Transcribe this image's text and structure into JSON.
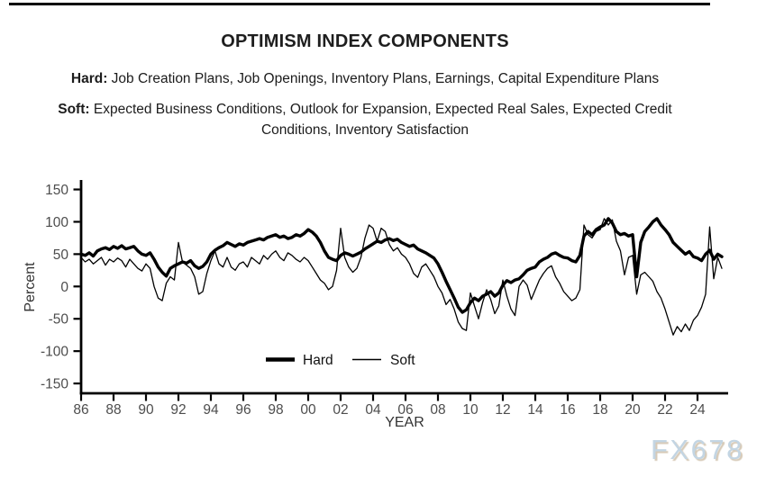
{
  "header": {
    "title": "OPTIMISM INDEX COMPONENTS",
    "hard_label": "Hard:",
    "hard_text": "Job Creation Plans, Job Openings, Inventory Plans, Earnings, Capital Expenditure Plans",
    "soft_label": "Soft:",
    "soft_text": "Expected Business Conditions, Outlook for Expansion, Expected Real Sales, Expected Credit Conditions, Inventory Satisfaction"
  },
  "watermark": "FX678",
  "chart_data": {
    "type": "line",
    "title": "OPTIMISM INDEX COMPONENTS",
    "xlabel": "YEAR",
    "ylabel": "Percent",
    "ylim": [
      -150,
      150
    ],
    "yticks": [
      150,
      100,
      50,
      0,
      -50,
      -100,
      -150
    ],
    "xticks": [
      {
        "label": "86",
        "year": 1986
      },
      {
        "label": "88",
        "year": 1988
      },
      {
        "label": "90",
        "year": 1990
      },
      {
        "label": "92",
        "year": 1992
      },
      {
        "label": "94",
        "year": 1994
      },
      {
        "label": "96",
        "year": 1996
      },
      {
        "label": "98",
        "year": 1998
      },
      {
        "label": "00",
        "year": 2000
      },
      {
        "label": "02",
        "year": 2002
      },
      {
        "label": "04",
        "year": 2004
      },
      {
        "label": "06",
        "year": 2006
      },
      {
        "label": "08",
        "year": 2008
      },
      {
        "label": "10",
        "year": 2010
      },
      {
        "label": "12",
        "year": 2012
      },
      {
        "label": "14",
        "year": 2014
      },
      {
        "label": "16",
        "year": 2016
      },
      {
        "label": "18",
        "year": 2018
      },
      {
        "label": "20",
        "year": 2020
      },
      {
        "label": "22",
        "year": 2022
      },
      {
        "label": "24",
        "year": 2024
      }
    ],
    "xlim": [
      1986,
      2025.9
    ],
    "grid": false,
    "legend": [
      "Hard",
      "Soft"
    ],
    "legend_position": "inside-bottom-center",
    "x_start": 1986.0,
    "x_step": 0.25,
    "colors": {
      "line": "#000000",
      "tick_label": "#4d4d4d",
      "axis_label": "#333333"
    },
    "series": [
      {
        "name": "Hard",
        "stroke_width": 3.4,
        "values": [
          50,
          48,
          52,
          47,
          55,
          58,
          60,
          57,
          62,
          59,
          63,
          58,
          60,
          62,
          55,
          50,
          48,
          52,
          42,
          30,
          22,
          16,
          28,
          32,
          35,
          38,
          36,
          40,
          32,
          28,
          31,
          38,
          50,
          56,
          60,
          63,
          68,
          65,
          62,
          66,
          64,
          68,
          70,
          72,
          74,
          72,
          76,
          78,
          80,
          76,
          78,
          74,
          76,
          80,
          78,
          82,
          88,
          84,
          78,
          68,
          55,
          45,
          42,
          40,
          48,
          52,
          50,
          47,
          50,
          53,
          58,
          62,
          66,
          70,
          68,
          72,
          74,
          71,
          73,
          68,
          65,
          62,
          64,
          58,
          55,
          52,
          48,
          44,
          35,
          22,
          8,
          -5,
          -18,
          -32,
          -40,
          -36,
          -25,
          -18,
          -22,
          -15,
          -12,
          -8,
          -15,
          -10,
          2,
          9,
          6,
          10,
          12,
          18,
          25,
          28,
          30,
          38,
          42,
          45,
          50,
          52,
          48,
          45,
          44,
          40,
          38,
          48,
          78,
          85,
          80,
          88,
          92,
          95,
          105,
          98,
          85,
          80,
          82,
          78,
          80,
          15,
          68,
          85,
          92,
          100,
          105,
          95,
          88,
          80,
          68,
          62,
          56,
          50,
          54,
          46,
          44,
          40,
          50,
          56,
          42,
          50,
          46
        ]
      },
      {
        "name": "Soft",
        "stroke_width": 1.3,
        "values": [
          45,
          38,
          42,
          35,
          40,
          45,
          33,
          42,
          38,
          44,
          40,
          30,
          42,
          35,
          28,
          24,
          35,
          28,
          0,
          -18,
          -22,
          5,
          15,
          10,
          68,
          38,
          33,
          28,
          15,
          -12,
          -8,
          20,
          40,
          55,
          35,
          30,
          45,
          30,
          25,
          35,
          38,
          30,
          45,
          40,
          35,
          48,
          42,
          50,
          55,
          45,
          40,
          52,
          48,
          42,
          38,
          45,
          40,
          30,
          20,
          10,
          5,
          -5,
          0,
          25,
          90,
          45,
          30,
          22,
          28,
          45,
          75,
          95,
          90,
          70,
          90,
          85,
          65,
          55,
          60,
          50,
          45,
          35,
          20,
          14,
          30,
          35,
          25,
          15,
          0,
          -10,
          -28,
          -20,
          -35,
          -55,
          -65,
          -68,
          -10,
          -30,
          -50,
          -25,
          -5,
          -20,
          -42,
          -30,
          10,
          -15,
          -35,
          -45,
          0,
          10,
          2,
          -20,
          -5,
          10,
          20,
          28,
          32,
          15,
          5,
          -8,
          -15,
          -22,
          -18,
          -5,
          95,
          80,
          75,
          85,
          88,
          105,
          95,
          103,
          70,
          55,
          18,
          45,
          48,
          -12,
          18,
          22,
          15,
          8,
          -8,
          -18,
          -35,
          -55,
          -75,
          -62,
          -70,
          -58,
          -68,
          -52,
          -45,
          -32,
          -12,
          92,
          12,
          45,
          28
        ]
      }
    ]
  }
}
